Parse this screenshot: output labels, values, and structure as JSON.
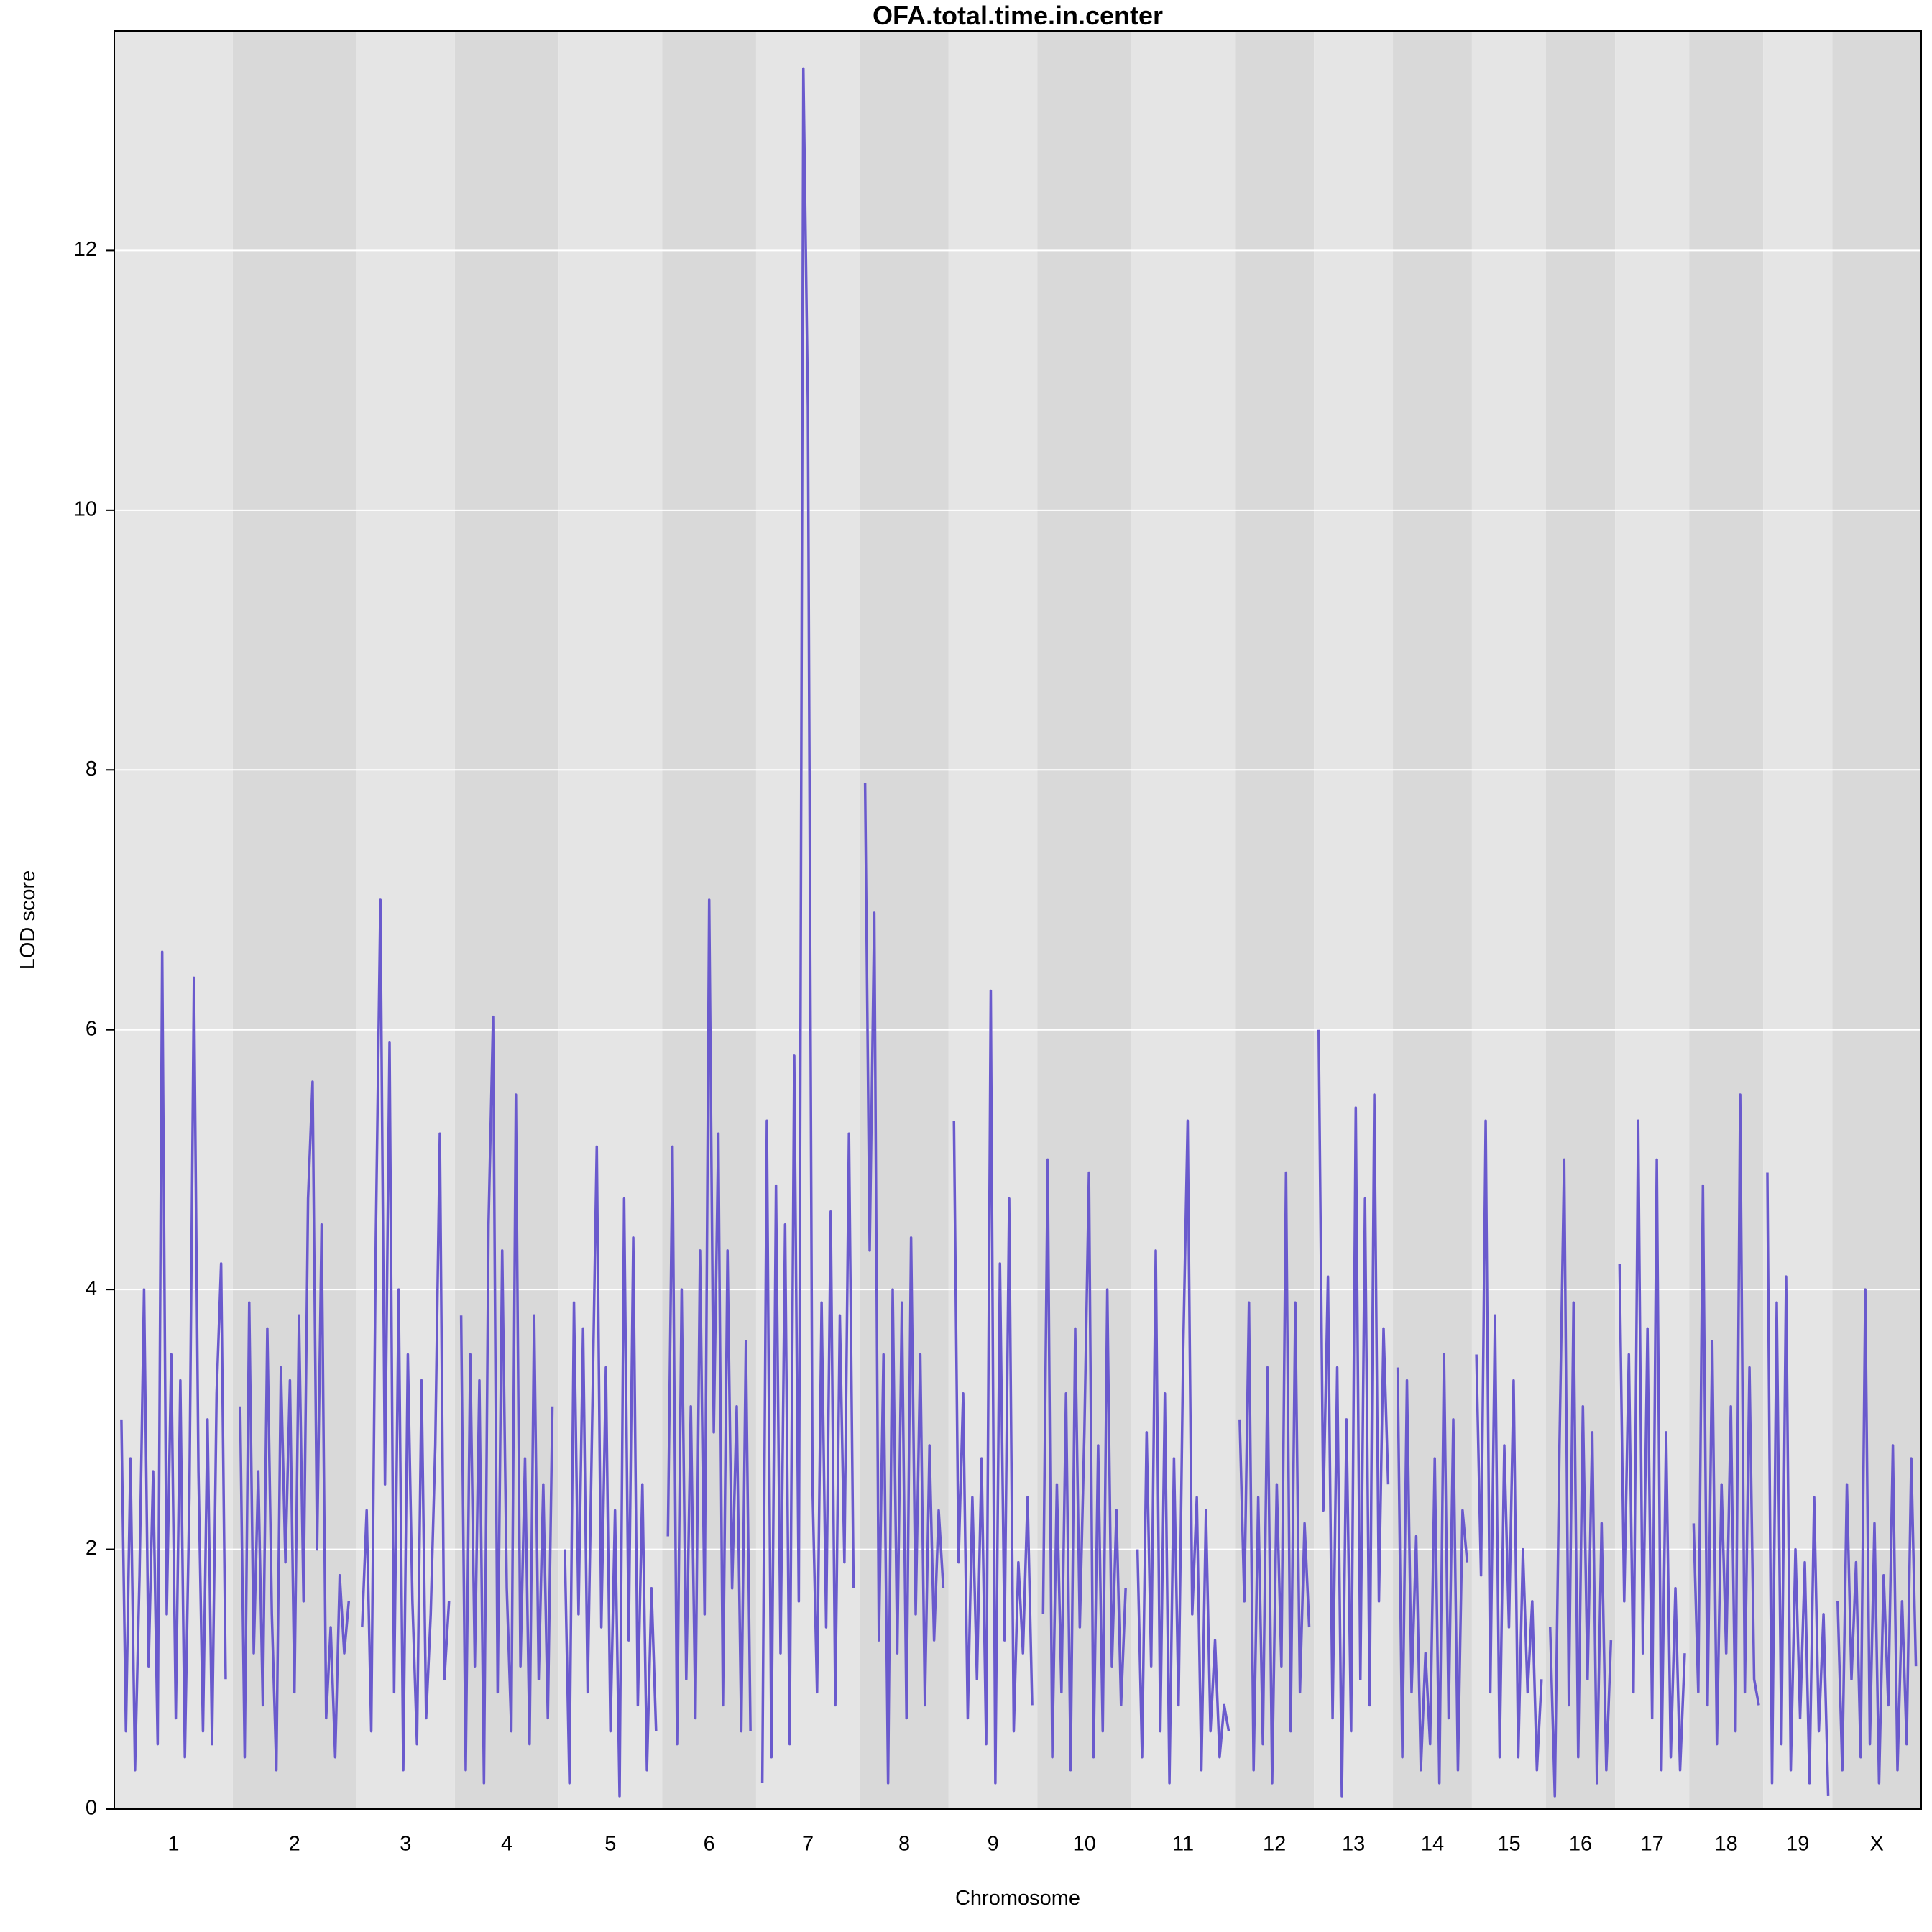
{
  "chart_data": {
    "type": "line",
    "title": "OFA.total.time.in.center",
    "x_label": "Chromosome",
    "y_label": "LOD score",
    "color": "#6a5acd",
    "band_colors": [
      "#e5e5e5",
      "#d9d9d9"
    ],
    "grid": true,
    "ylim": [
      0,
      13.69
    ],
    "yticks": [
      0,
      2,
      4,
      6,
      8,
      10,
      12
    ],
    "categories": [
      "1",
      "2",
      "3",
      "4",
      "5",
      "6",
      "7",
      "8",
      "9",
      "10",
      "11",
      "12",
      "13",
      "14",
      "15",
      "16",
      "17",
      "18",
      "19",
      "X"
    ],
    "values": [
      [
        3.0,
        0.6,
        2.7,
        0.3,
        1.8,
        4.0,
        1.1,
        2.6,
        0.5,
        6.6,
        1.5,
        3.5,
        0.7,
        3.3,
        0.4,
        2.4,
        6.4,
        2.6,
        0.6,
        3.0,
        0.5,
        3.2,
        4.2,
        1.0
      ],
      [
        3.1,
        0.4,
        3.9,
        1.2,
        2.6,
        0.8,
        3.7,
        1.5,
        0.3,
        3.4,
        1.9,
        3.3,
        0.9,
        3.8,
        1.6,
        4.7,
        5.6,
        2.0,
        4.5,
        0.7,
        1.4,
        0.4,
        1.8,
        1.2,
        1.6
      ],
      [
        1.4,
        2.3,
        0.6,
        4.4,
        7.0,
        2.5,
        5.9,
        0.9,
        4.0,
        0.3,
        3.5,
        1.6,
        0.5,
        3.3,
        0.7,
        1.5,
        2.8,
        5.2,
        1.0,
        1.6
      ],
      [
        3.8,
        0.3,
        3.5,
        1.1,
        3.3,
        0.2,
        4.5,
        6.1,
        0.9,
        4.3,
        1.7,
        0.6,
        5.5,
        1.1,
        2.7,
        0.5,
        3.8,
        1.0,
        2.5,
        0.7,
        3.1
      ],
      [
        2.0,
        0.2,
        3.9,
        1.5,
        3.7,
        0.9,
        3.0,
        5.1,
        1.4,
        3.4,
        0.6,
        2.3,
        0.1,
        4.7,
        1.3,
        4.4,
        0.8,
        2.5,
        0.3,
        1.7,
        0.6
      ],
      [
        2.1,
        5.1,
        0.5,
        4.0,
        1.0,
        3.1,
        0.7,
        4.3,
        1.5,
        7.0,
        2.9,
        5.2,
        0.8,
        4.3,
        1.7,
        3.1,
        0.6,
        3.6,
        0.6
      ],
      [
        0.2,
        5.3,
        0.4,
        4.8,
        1.2,
        4.5,
        0.5,
        5.8,
        1.6,
        13.4,
        10.8,
        2.5,
        0.9,
        3.9,
        1.4,
        4.6,
        0.8,
        3.8,
        1.9,
        5.2,
        1.7
      ],
      [
        7.9,
        4.3,
        6.9,
        1.3,
        3.5,
        0.2,
        4.0,
        1.2,
        3.9,
        0.7,
        4.4,
        1.5,
        3.5,
        0.8,
        2.8,
        1.3,
        2.3,
        1.7
      ],
      [
        5.3,
        1.9,
        3.2,
        0.7,
        2.4,
        1.0,
        2.7,
        0.5,
        6.3,
        0.2,
        4.2,
        1.3,
        4.7,
        0.6,
        1.9,
        1.2,
        2.4,
        0.8
      ],
      [
        1.5,
        5.0,
        0.4,
        2.5,
        0.9,
        3.2,
        0.3,
        3.7,
        1.4,
        2.9,
        4.9,
        0.4,
        2.8,
        0.6,
        4.0,
        1.1,
        2.3,
        0.8,
        1.7
      ],
      [
        2.0,
        0.4,
        2.9,
        1.1,
        4.3,
        0.6,
        3.2,
        0.2,
        2.7,
        0.8,
        3.5,
        5.3,
        1.5,
        2.4,
        0.3,
        2.3,
        0.6,
        1.3,
        0.4,
        0.8,
        0.6
      ],
      [
        3.0,
        1.6,
        3.9,
        0.3,
        2.4,
        0.5,
        3.4,
        0.2,
        2.5,
        1.1,
        4.9,
        0.6,
        3.9,
        0.9,
        2.2,
        1.4
      ],
      [
        6.0,
        2.3,
        4.1,
        0.7,
        3.4,
        0.1,
        3.0,
        0.6,
        5.4,
        1.0,
        4.7,
        0.8,
        5.5,
        1.6,
        3.7,
        2.5
      ],
      [
        3.4,
        0.4,
        3.3,
        0.9,
        2.1,
        0.3,
        1.2,
        0.5,
        2.7,
        0.2,
        3.5,
        0.7,
        3.0,
        0.3,
        2.3,
        1.9
      ],
      [
        3.5,
        1.8,
        5.3,
        0.9,
        3.8,
        0.4,
        2.8,
        1.4,
        3.3,
        0.4,
        2.0,
        0.9,
        1.6,
        0.3,
        1.0
      ],
      [
        1.4,
        0.1,
        2.8,
        5.0,
        0.8,
        3.9,
        0.4,
        3.1,
        1.0,
        2.9,
        0.2,
        2.2,
        0.3,
        1.3
      ],
      [
        4.2,
        1.6,
        3.5,
        0.9,
        5.3,
        1.2,
        3.7,
        0.7,
        5.0,
        0.3,
        2.9,
        0.4,
        1.7,
        0.3,
        1.2
      ],
      [
        2.2,
        0.9,
        4.8,
        0.8,
        3.6,
        0.5,
        2.5,
        1.2,
        3.1,
        0.6,
        5.5,
        0.9,
        3.4,
        1.0,
        0.8
      ],
      [
        4.9,
        0.2,
        3.9,
        0.5,
        4.1,
        0.3,
        2.0,
        0.7,
        1.9,
        0.2,
        2.4,
        0.6,
        1.5,
        0.1
      ],
      [
        1.6,
        0.3,
        2.5,
        1.0,
        1.9,
        0.4,
        4.0,
        0.5,
        2.2,
        0.2,
        1.8,
        0.8,
        2.8,
        0.3,
        1.6,
        0.5,
        2.7,
        1.1
      ]
    ]
  }
}
